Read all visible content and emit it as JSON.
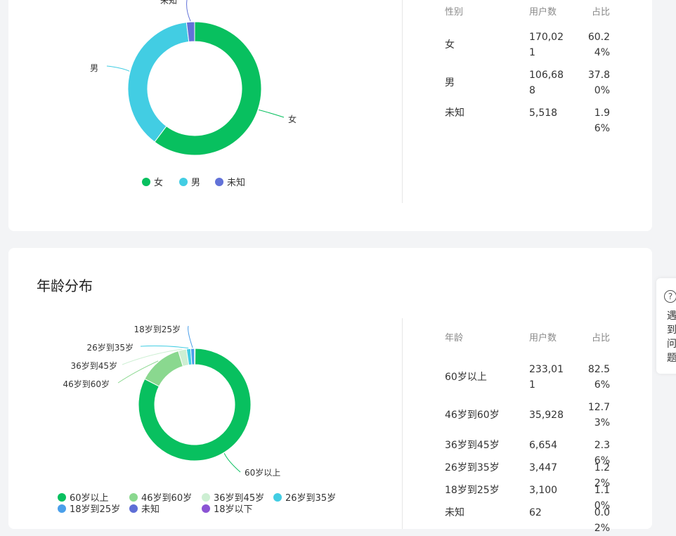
{
  "gender_section": {
    "table": {
      "headers": [
        "性别",
        "用户数",
        "占比"
      ],
      "rows": [
        {
          "label": "女",
          "users": "170,021",
          "pct": "60.24%"
        },
        {
          "label": "男",
          "users": "106,688",
          "pct": "37.80%"
        },
        {
          "label": "未知",
          "users": "5,518",
          "pct": "1.96%"
        }
      ]
    }
  },
  "age_section": {
    "title": "年龄分布",
    "table": {
      "headers": [
        "年龄",
        "用户数",
        "占比"
      ],
      "rows": [
        {
          "label": "60岁以上",
          "users": "233,011",
          "pct": "82.56%"
        },
        {
          "label": "46岁到60岁",
          "users": "35,928",
          "pct": "12.73%"
        },
        {
          "label": "36岁到45岁",
          "users": "6,654",
          "pct": "2.36%"
        },
        {
          "label": "26岁到35岁",
          "users": "3,447",
          "pct": "1.22%"
        },
        {
          "label": "18岁到25岁",
          "users": "3,100",
          "pct": "1.10%"
        },
        {
          "label": "未知",
          "users": "62",
          "pct": "0.02%"
        }
      ]
    }
  },
  "help_widget": {
    "label": "遇到问题"
  },
  "chart_data": [
    {
      "type": "pie",
      "variant": "donut",
      "categories": [
        "女",
        "男",
        "未知"
      ],
      "values": [
        60.24,
        37.8,
        1.96
      ],
      "colors": [
        "#08c05f",
        "#42cde3",
        "#6272d8"
      ],
      "legend": [
        "女",
        "男",
        "未知"
      ],
      "legend_position": "bottom"
    },
    {
      "type": "pie",
      "variant": "donut",
      "categories": [
        "60岁以上",
        "46岁到60岁",
        "36岁到45岁",
        "26岁到35岁",
        "18岁到25岁",
        "未知"
      ],
      "values": [
        82.56,
        12.73,
        2.36,
        1.22,
        1.1,
        0.02
      ],
      "colors": [
        "#08c05f",
        "#8ad88f",
        "#cdefd3",
        "#42cde3",
        "#4a9fea",
        "#5e6ed6"
      ],
      "legend": [
        "60岁以上",
        "46岁到60岁",
        "36岁到45岁",
        "26岁到35岁",
        "18岁到25岁",
        "未知",
        "18岁以下"
      ],
      "legend_colors": [
        "#08c05f",
        "#8ad88f",
        "#cdefd3",
        "#42cde3",
        "#4a9fea",
        "#5e6ed6",
        "#8b54d4"
      ],
      "legend_position": "bottom"
    }
  ]
}
